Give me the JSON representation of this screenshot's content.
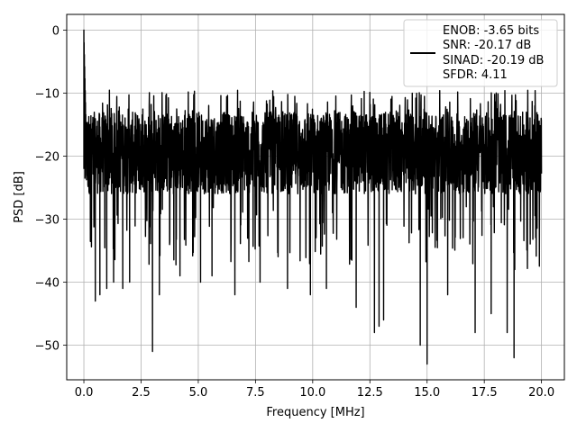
{
  "chart_data": {
    "type": "line",
    "title": "",
    "xlabel": "Frequency [MHz]",
    "ylabel": "PSD [dB]",
    "xlim": [
      -0.75,
      21.0
    ],
    "ylim": [
      -55.5,
      2.5
    ],
    "x_ticks": [
      0.0,
      2.5,
      5.0,
      7.5,
      10.0,
      12.5,
      15.0,
      17.5,
      20.0
    ],
    "x_tick_labels": [
      "0.0",
      "2.5",
      "5.0",
      "7.5",
      "10.0",
      "12.5",
      "15.0",
      "17.5",
      "20.0"
    ],
    "y_ticks": [
      0,
      -10,
      -20,
      -30,
      -40,
      -50
    ],
    "y_tick_labels": [
      "0",
      "−10",
      "−20",
      "−30",
      "−40",
      "−50"
    ],
    "grid": true,
    "legend_position": "top-right",
    "legend_text": [
      "ENOB: -3.65 bits",
      "SNR: -20.17 dB",
      "SINAD: -20.19 dB",
      "SFDR: 4.11"
    ],
    "series": [
      {
        "color": "#000000",
        "x_range": [
          0.0,
          20.0
        ],
        "peak": [
          0.0,
          0.0
        ],
        "noise_band": [
          -26,
          -13
        ],
        "deep_dips": [
          [
            0.5,
            -43
          ],
          [
            0.7,
            -42
          ],
          [
            1.0,
            -41
          ],
          [
            1.3,
            -40
          ],
          [
            1.7,
            -41
          ],
          [
            2.0,
            -40
          ],
          [
            3.0,
            -51
          ],
          [
            3.3,
            -42
          ],
          [
            4.2,
            -39
          ],
          [
            5.1,
            -40
          ],
          [
            5.6,
            -39
          ],
          [
            6.6,
            -42
          ],
          [
            7.7,
            -40
          ],
          [
            8.9,
            -41
          ],
          [
            9.9,
            -42
          ],
          [
            10.6,
            -41
          ],
          [
            11.9,
            -44
          ],
          [
            12.7,
            -48
          ],
          [
            12.9,
            -47
          ],
          [
            13.1,
            -46
          ],
          [
            14.7,
            -50
          ],
          [
            15.0,
            -53
          ],
          [
            15.9,
            -42
          ],
          [
            17.1,
            -48
          ],
          [
            17.8,
            -45
          ],
          [
            18.5,
            -48
          ],
          [
            18.8,
            -52
          ]
        ]
      }
    ]
  }
}
